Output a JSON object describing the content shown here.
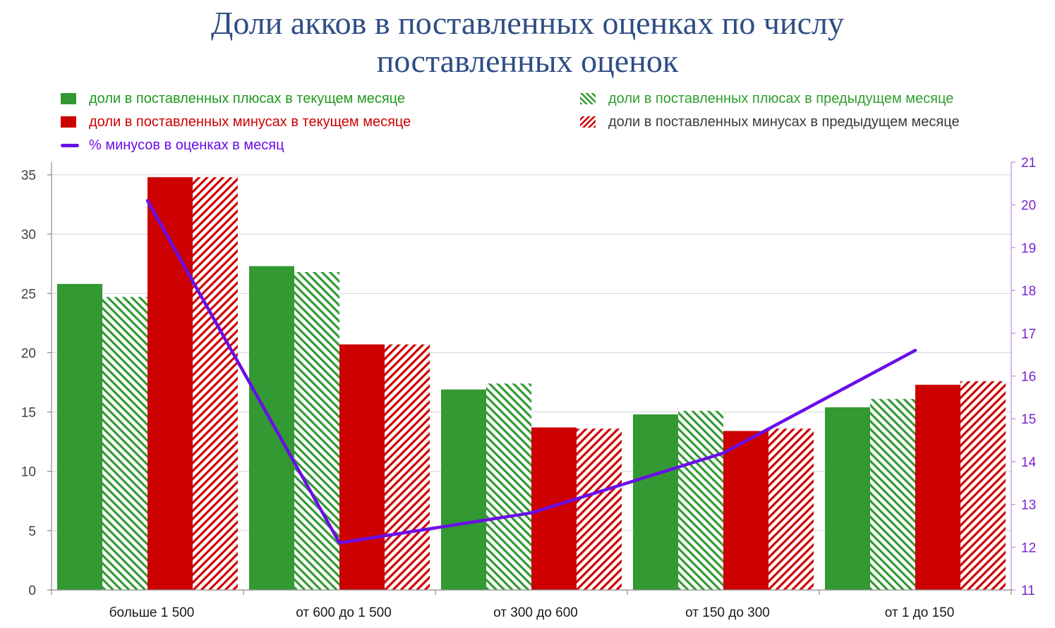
{
  "chart_data": {
    "type": "bar",
    "title": "Доли акков в поставленных оценках по числу поставленных оценок",
    "title_lines": [
      "Доли акков в поставленных оценках по числу",
      "поставленных оценок"
    ],
    "categories": [
      "больше 1 500",
      "от 600 до 1 500",
      "от 300 до 600",
      "от 150 до 300",
      "от 1 до 150"
    ],
    "ylim": [
      0,
      35
    ],
    "yticks": [
      0,
      5,
      10,
      15,
      20,
      25,
      30,
      35
    ],
    "y2lim": [
      11,
      21
    ],
    "y2ticks": [
      11,
      12,
      13,
      14,
      15,
      16,
      17,
      18,
      19,
      20,
      21
    ],
    "grid": true,
    "legend_position": "top",
    "series": [
      {
        "name": "доли в поставленных плюсах в текущем месяце",
        "kind": "bar",
        "style": "solid",
        "color": "#339933",
        "text_color": "#1f9a1f",
        "values": [
          25.8,
          27.3,
          16.9,
          14.8,
          15.4
        ]
      },
      {
        "name": "доли в поставленных плюсах в предыдущем месяце",
        "kind": "bar",
        "style": "hatched",
        "color": "#339933",
        "text_color": "#2e9e2e",
        "values": [
          24.7,
          26.8,
          17.4,
          15.1,
          16.1
        ]
      },
      {
        "name": "доли в поставленных минусах в текущем месяце",
        "kind": "bar",
        "style": "solid",
        "color": "#cc0000",
        "text_color": "#cc0000",
        "values": [
          34.8,
          20.7,
          13.7,
          13.4,
          17.3
        ]
      },
      {
        "name": "доли в поставленных минусах в предыдущем месяце",
        "kind": "bar",
        "style": "hatched",
        "color": "#cc0000",
        "text_color": "#3a3a3a",
        "values": [
          34.8,
          20.7,
          13.6,
          13.6,
          17.6
        ]
      },
      {
        "name": "% минусов в оценках в месяц",
        "kind": "line",
        "axis": "right",
        "color": "#6a0ee8",
        "text_color": "#6a0ee8",
        "values": [
          20.1,
          12.1,
          12.8,
          14.2,
          16.6
        ]
      }
    ]
  }
}
